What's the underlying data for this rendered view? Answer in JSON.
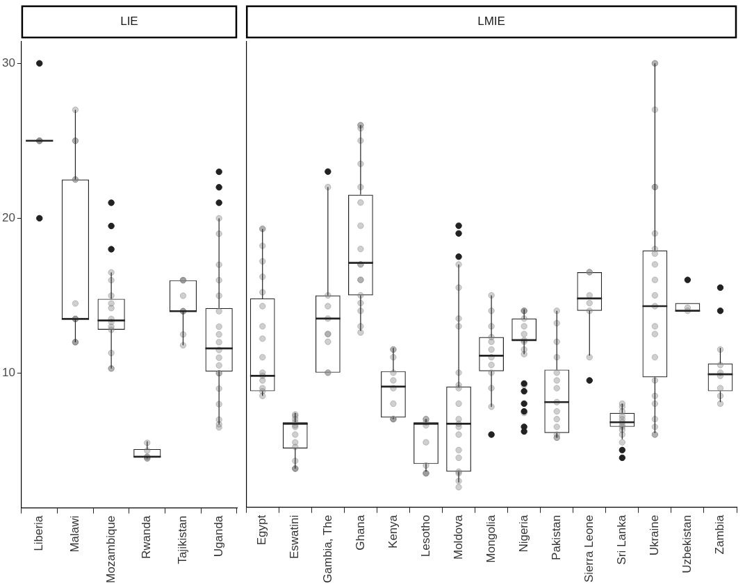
{
  "chart_data": [
    {
      "type": "box",
      "title": "LIE",
      "categories": [
        "Liberia",
        "Malawi",
        "Mozambique",
        "Rwanda",
        "Tajikistan",
        "Uganda"
      ],
      "boxes": [
        {
          "low": 25,
          "q1": 25,
          "median": 25,
          "q3": 25,
          "high": 25,
          "outliers": [
            30,
            20
          ]
        },
        {
          "low": 12,
          "q1": 13.5,
          "median": 13.5,
          "q3": 22.5,
          "high": 27
        },
        {
          "low": 10.3,
          "q1": 12.8,
          "median": 13.4,
          "q3": 14.8,
          "high": 16.5,
          "outliers": [
            21,
            19.5,
            18
          ]
        },
        {
          "low": 4.5,
          "q1": 4.6,
          "median": 4.6,
          "q3": 5.1,
          "high": 5.6
        },
        {
          "low": 11.8,
          "q1": 14,
          "median": 14,
          "q3": 16,
          "high": 16
        },
        {
          "low": 6.7,
          "q1": 10.1,
          "median": 11.6,
          "q3": 14.2,
          "high": 20,
          "outliers": [
            23,
            22,
            21
          ]
        }
      ],
      "series": [
        {
          "type": "scatter",
          "color": "#808080",
          "x": [
            "Liberia",
            "Liberia",
            "Liberia",
            "Liberia",
            "Malawi",
            "Malawi",
            "Malawi",
            "Malawi",
            "Malawi",
            "Malawi",
            "Malawi",
            "Malawi",
            "Malawi",
            "Malawi",
            "Malawi",
            "Malawi",
            "Mozambique",
            "Mozambique",
            "Mozambique",
            "Mozambique",
            "Mozambique",
            "Mozambique",
            "Mozambique",
            "Mozambique",
            "Mozambique",
            "Mozambique",
            "Mozambique",
            "Mozambique",
            "Rwanda",
            "Rwanda",
            "Rwanda",
            "Rwanda",
            "Rwanda",
            "Rwanda",
            "Tajikistan",
            "Tajikistan",
            "Tajikistan",
            "Tajikistan",
            "Tajikistan",
            "Tajikistan",
            "Tajikistan",
            "Tajikistan",
            "Tajikistan",
            "Uganda",
            "Uganda",
            "Uganda",
            "Uganda",
            "Uganda",
            "Uganda",
            "Uganda",
            "Uganda",
            "Uganda",
            "Uganda",
            "Uganda",
            "Uganda",
            "Uganda",
            "Uganda",
            "Uganda",
            "Uganda",
            "Uganda",
            "Uganda",
            "Uganda"
          ],
          "values": [
            25,
            25,
            25,
            25,
            27,
            25,
            25,
            22.5,
            22.5,
            14.5,
            13.5,
            13.5,
            13.5,
            12,
            12,
            12,
            16.5,
            16,
            15,
            14.5,
            14.2,
            13.5,
            13.3,
            13,
            12.8,
            11.3,
            10.3,
            10.3,
            5.5,
            5,
            4.6,
            4.6,
            4.5,
            4.5,
            16,
            16,
            16,
            15,
            14,
            14,
            14,
            12.5,
            11.8,
            20,
            19,
            17,
            16,
            15,
            14,
            13,
            12.5,
            12,
            11.5,
            11,
            10.5,
            10,
            10,
            9,
            8,
            7,
            6.7,
            6.5
          ]
        }
      ],
      "ylim": [
        1.3,
        31.4
      ],
      "yticks": [
        10,
        20,
        30
      ],
      "grid": false,
      "legend": false
    },
    {
      "type": "box",
      "title": "LMIE",
      "categories": [
        "Egypt",
        "Eswatini",
        "Gambia, The",
        "Ghana",
        "Kenya",
        "Lesotho",
        "Moldova",
        "Mongolia",
        "Nigeria",
        "Pakistan",
        "Sierra Leone",
        "Sri Lanka",
        "Ukraine",
        "Uzbekistan",
        "Zambia"
      ],
      "boxes": [
        {
          "low": 8.5,
          "q1": 8.8,
          "median": 9.8,
          "q3": 14.8,
          "high": 19.3
        },
        {
          "low": 3.8,
          "q1": 5.1,
          "median": 6.7,
          "q3": 6.8,
          "high": 7.4
        },
        {
          "low": 10,
          "q1": 10,
          "median": 13.5,
          "q3": 15,
          "high": 22,
          "outliers": [
            23
          ]
        },
        {
          "low": 12.7,
          "q1": 15,
          "median": 17.1,
          "q3": 21.5,
          "high": 26
        },
        {
          "low": 7,
          "q1": 7.1,
          "median": 9.1,
          "q3": 10.1,
          "high": 11.6
        },
        {
          "low": 3.6,
          "q1": 4.1,
          "median": 6.7,
          "q3": 6.8,
          "high": 7
        },
        {
          "low": 2.9,
          "q1": 3.6,
          "median": 6.7,
          "q3": 9.1,
          "high": 17,
          "outliers": [
            19.5,
            19,
            17.5
          ]
        },
        {
          "low": 7.8,
          "q1": 10.1,
          "median": 11.1,
          "q3": 12.3,
          "high": 15,
          "outliers": [
            6
          ]
        },
        {
          "low": 11.2,
          "q1": 12.1,
          "median": 12.1,
          "q3": 13.5,
          "high": 14.1,
          "outliers": [
            9.3,
            8.8,
            8,
            7.5,
            6.5,
            6.2
          ]
        },
        {
          "low": 5.8,
          "q1": 6.1,
          "median": 8.1,
          "q3": 10.2,
          "high": 14
        },
        {
          "low": 11.1,
          "q1": 14,
          "median": 14.8,
          "q3": 16.5,
          "high": 16.5,
          "outliers": [
            9.5
          ]
        },
        {
          "low": 5.7,
          "q1": 6.5,
          "median": 6.8,
          "q3": 7.4,
          "high": 8,
          "outliers": [
            5,
            4.5
          ]
        },
        {
          "low": 6.1,
          "q1": 9.7,
          "median": 14.3,
          "q3": 17.9,
          "high": 30
        },
        {
          "low": 14,
          "q1": 14,
          "median": 14,
          "q3": 14.5,
          "high": 14.5,
          "outliers": [
            16
          ]
        },
        {
          "low": 8.1,
          "q1": 8.8,
          "median": 9.9,
          "q3": 10.6,
          "high": 11.6,
          "outliers": [
            15.5,
            14
          ]
        }
      ],
      "series": [
        {
          "type": "scatter",
          "color": "#808080",
          "x": [
            "Egypt",
            "Egypt",
            "Egypt",
            "Egypt",
            "Egypt",
            "Egypt",
            "Egypt",
            "Egypt",
            "Egypt",
            "Egypt",
            "Egypt",
            "Egypt",
            "Egypt",
            "Egypt",
            "Egypt",
            "Egypt",
            "Eswatini",
            "Eswatini",
            "Eswatini",
            "Eswatini",
            "Eswatini",
            "Eswatini",
            "Eswatini",
            "Eswatini",
            "Eswatini",
            "Eswatini",
            "Eswatini",
            "Eswatini",
            "Eswatini",
            "Gambia, The",
            "Gambia, The",
            "Gambia, The",
            "Gambia, The",
            "Gambia, The",
            "Gambia, The",
            "Gambia, The",
            "Gambia, The",
            "Gambia, The",
            "Ghana",
            "Ghana",
            "Ghana",
            "Ghana",
            "Ghana",
            "Ghana",
            "Ghana",
            "Ghana",
            "Ghana",
            "Ghana",
            "Ghana",
            "Ghana",
            "Ghana",
            "Ghana",
            "Ghana",
            "Ghana",
            "Ghana",
            "Ghana",
            "Kenya",
            "Kenya",
            "Kenya",
            "Kenya",
            "Kenya",
            "Kenya",
            "Kenya",
            "Kenya",
            "Kenya",
            "Kenya",
            "Lesotho",
            "Lesotho",
            "Lesotho",
            "Lesotho",
            "Lesotho",
            "Lesotho",
            "Lesotho",
            "Lesotho",
            "Lesotho",
            "Moldova",
            "Moldova",
            "Moldova",
            "Moldova",
            "Moldova",
            "Moldova",
            "Moldova",
            "Moldova",
            "Moldova",
            "Moldova",
            "Moldova",
            "Moldova",
            "Moldova",
            "Moldova",
            "Moldova",
            "Moldova",
            "Moldova",
            "Moldova",
            "Mongolia",
            "Mongolia",
            "Mongolia",
            "Mongolia",
            "Mongolia",
            "Mongolia",
            "Mongolia",
            "Mongolia",
            "Mongolia",
            "Mongolia",
            "Mongolia",
            "Nigeria",
            "Nigeria",
            "Nigeria",
            "Nigeria",
            "Nigeria",
            "Nigeria",
            "Nigeria",
            "Nigeria",
            "Nigeria",
            "Nigeria",
            "Nigeria",
            "Nigeria",
            "Pakistan",
            "Pakistan",
            "Pakistan",
            "Pakistan",
            "Pakistan",
            "Pakistan",
            "Pakistan",
            "Pakistan",
            "Pakistan",
            "Pakistan",
            "Pakistan",
            "Pakistan",
            "Pakistan",
            "Pakistan",
            "Sierra Leone",
            "Sierra Leone",
            "Sierra Leone",
            "Sierra Leone",
            "Sierra Leone",
            "Sierra Leone",
            "Sri Lanka",
            "Sri Lanka",
            "Sri Lanka",
            "Sri Lanka",
            "Sri Lanka",
            "Sri Lanka",
            "Sri Lanka",
            "Sri Lanka",
            "Sri Lanka",
            "Sri Lanka",
            "Sri Lanka",
            "Ukraine",
            "Ukraine",
            "Ukraine",
            "Ukraine",
            "Ukraine",
            "Ukraine",
            "Ukraine",
            "Ukraine",
            "Ukraine",
            "Ukraine",
            "Ukraine",
            "Ukraine",
            "Ukraine",
            "Ukraine",
            "Ukraine",
            "Ukraine",
            "Ukraine",
            "Ukraine",
            "Ukraine",
            "Ukraine",
            "Ukraine",
            "Ukraine",
            "Uzbekistan",
            "Uzbekistan",
            "Zambia",
            "Zambia",
            "Zambia",
            "Zambia",
            "Zambia",
            "Zambia",
            "Zambia"
          ],
          "values": [
            19.3,
            19.3,
            18.2,
            17.2,
            16.2,
            15.2,
            14.3,
            13,
            12.2,
            11,
            10,
            9.8,
            9.5,
            9,
            8.8,
            8.5,
            7.3,
            7.2,
            7,
            6.8,
            6.6,
            6.5,
            6,
            5.5,
            5.2,
            4.3,
            3.8,
            3.8,
            3.8,
            22,
            15,
            14.3,
            13.5,
            12.5,
            12.5,
            12,
            10,
            10,
            26,
            26,
            25.8,
            25,
            23.5,
            22,
            21,
            19.5,
            18,
            17,
            17,
            16,
            16,
            15,
            14.5,
            14,
            13,
            12.6,
            11.5,
            11.5,
            11,
            10,
            9.5,
            9,
            8,
            7,
            7,
            7,
            7,
            7,
            6.8,
            6.6,
            5.5,
            4,
            3.5,
            3.5,
            3.5,
            17,
            15.5,
            13.5,
            13,
            10,
            9.2,
            9,
            8,
            7,
            6.7,
            6.5,
            6,
            5,
            4.5,
            3.6,
            3.5,
            3,
            2.6,
            15,
            14,
            13,
            12.3,
            12,
            11.5,
            11,
            10.5,
            10,
            9,
            7.8,
            14,
            14,
            14,
            13.5,
            13,
            12.5,
            12.1,
            12,
            11.5,
            11.2,
            9.2,
            7.4,
            14,
            13.2,
            12,
            11,
            10,
            9.5,
            9,
            8.1,
            7.5,
            7,
            6.5,
            6,
            5.8,
            5.8,
            16.5,
            16.5,
            15,
            14.5,
            14,
            11,
            8,
            7.8,
            7.5,
            7.2,
            7,
            6.8,
            6.6,
            6.5,
            6.3,
            6,
            5.5,
            30,
            30,
            27,
            22,
            22,
            19,
            18,
            17.7,
            17,
            16,
            15,
            14.3,
            13,
            12.5,
            11,
            9.5,
            8.5,
            8,
            7,
            6.5,
            6,
            6,
            14.2,
            14,
            11.5,
            10.5,
            10,
            9.8,
            9,
            8.5,
            8
          ]
        }
      ],
      "ylim": [
        1.3,
        31.4
      ],
      "yticks": [
        10,
        20,
        30
      ],
      "grid": false,
      "legend": false,
      "tick_labels": "x"
    }
  ]
}
